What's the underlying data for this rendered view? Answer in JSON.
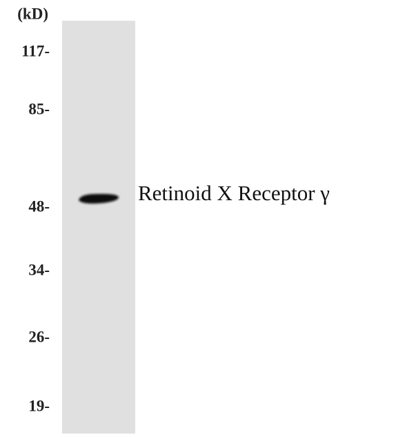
{
  "unit": "(kD)",
  "markers": [
    "117-",
    "85-",
    "48-",
    "34-",
    "26-",
    "19-"
  ],
  "band_label": "Retinoid X Receptor γ"
}
